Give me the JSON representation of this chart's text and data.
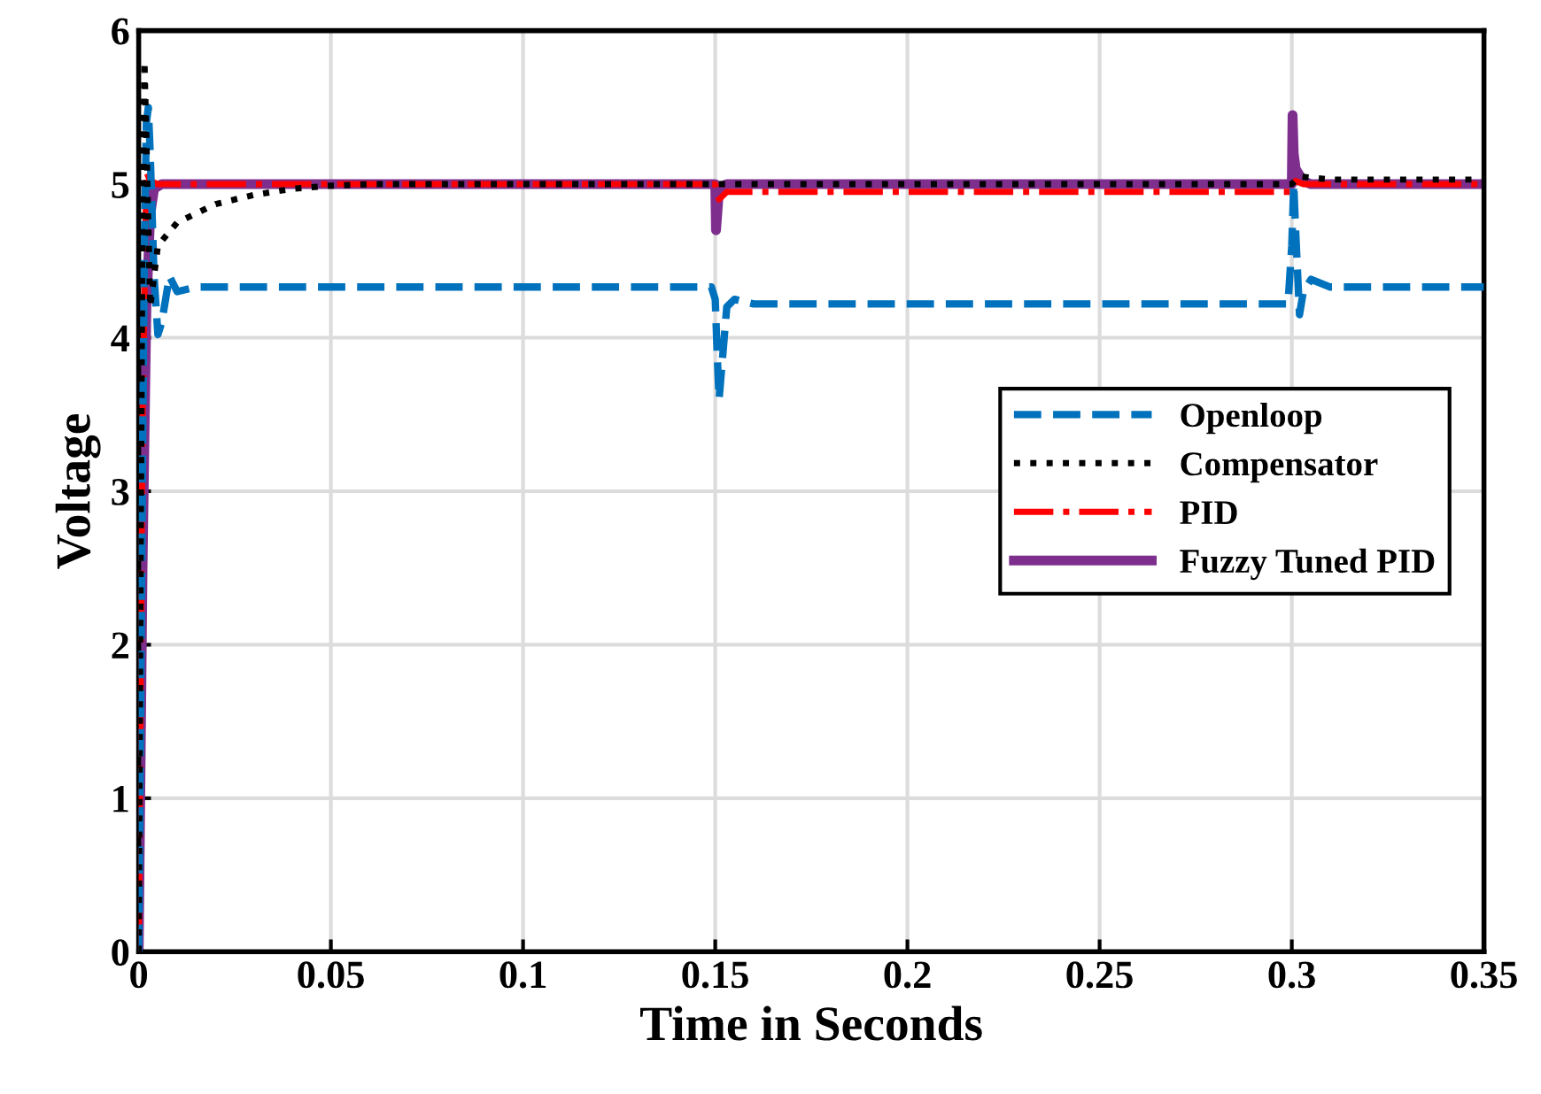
{
  "chart_data": {
    "type": "line",
    "xlabel": "Time in Seconds",
    "ylabel": "Voltage",
    "xlim": [
      0,
      0.35
    ],
    "ylim": [
      0,
      6
    ],
    "xticks": [
      {
        "value": 0,
        "label": "0"
      },
      0.05,
      0.1,
      0.15,
      0.2,
      0.25,
      0.3,
      0.35
    ],
    "yticks": [
      0,
      1,
      2,
      3,
      4,
      5,
      6
    ],
    "grid": true,
    "legend": "right",
    "series": [
      {
        "name": "Openloop",
        "color": "#0072bd",
        "line_style": "dashed",
        "x": [
          0,
          0.0005,
          0.001,
          0.0015,
          0.002,
          0.0025,
          0.003,
          0.004,
          0.005,
          0.006,
          0.008,
          0.01,
          0.015,
          0.02,
          0.05,
          0.1,
          0.149,
          0.15,
          0.1505,
          0.151,
          0.152,
          0.153,
          0.155,
          0.16,
          0.2,
          0.25,
          0.299,
          0.3,
          0.3005,
          0.301,
          0.302,
          0.303,
          0.305,
          0.31,
          0.35
        ],
        "values": [
          0,
          1.5,
          3.2,
          4.6,
          5.4,
          5.5,
          5.2,
          4.4,
          4.02,
          4.1,
          4.4,
          4.3,
          4.33,
          4.33,
          4.33,
          4.33,
          4.33,
          4.25,
          3.9,
          3.6,
          3.9,
          4.2,
          4.25,
          4.22,
          4.22,
          4.22,
          4.22,
          4.6,
          5.0,
          4.7,
          4.15,
          4.3,
          4.38,
          4.33,
          4.33
        ]
      },
      {
        "name": "Compensator",
        "color": "#000000",
        "line_style": "dotted",
        "x": [
          0,
          0.0005,
          0.001,
          0.0015,
          0.002,
          0.003,
          0.005,
          0.01,
          0.02,
          0.03,
          0.04,
          0.05,
          0.06,
          0.1,
          0.15,
          0.2,
          0.25,
          0.3,
          0.302,
          0.31,
          0.35
        ],
        "values": [
          0,
          2.5,
          4.8,
          5.8,
          5.3,
          4.2,
          4.6,
          4.75,
          4.87,
          4.93,
          4.97,
          4.99,
          5.0,
          5.0,
          5.0,
          5.0,
          5.0,
          5.0,
          5.05,
          5.03,
          5.03
        ]
      },
      {
        "name": "PID",
        "color": "#ff0000",
        "line_style": "dashdot",
        "x": [
          0,
          0.001,
          0.002,
          0.003,
          0.005,
          0.01,
          0.15,
          0.151,
          0.153,
          0.2,
          0.25,
          0.3,
          0.301,
          0.303,
          0.35
        ],
        "values": [
          0,
          3.5,
          5.08,
          5.02,
          5.0,
          5.0,
          5.0,
          4.9,
          4.95,
          4.95,
          4.95,
          4.95,
          5.02,
          5.0,
          5.0
        ]
      },
      {
        "name": "Fuzzy Tuned PID",
        "color": "#7e2f8e",
        "line_style": "solid",
        "x": [
          0,
          0.001,
          0.002,
          0.003,
          0.004,
          0.006,
          0.01,
          0.15,
          0.1502,
          0.1505,
          0.151,
          0.153,
          0.2,
          0.3,
          0.3002,
          0.3005,
          0.301,
          0.303,
          0.305,
          0.35
        ],
        "values": [
          0,
          2.5,
          4.2,
          4.8,
          4.97,
          5.0,
          5.0,
          5.0,
          4.7,
          4.8,
          4.98,
          5.0,
          5.0,
          5.0,
          5.45,
          5.2,
          5.1,
          5.02,
          5.0,
          5.0
        ]
      }
    ]
  }
}
